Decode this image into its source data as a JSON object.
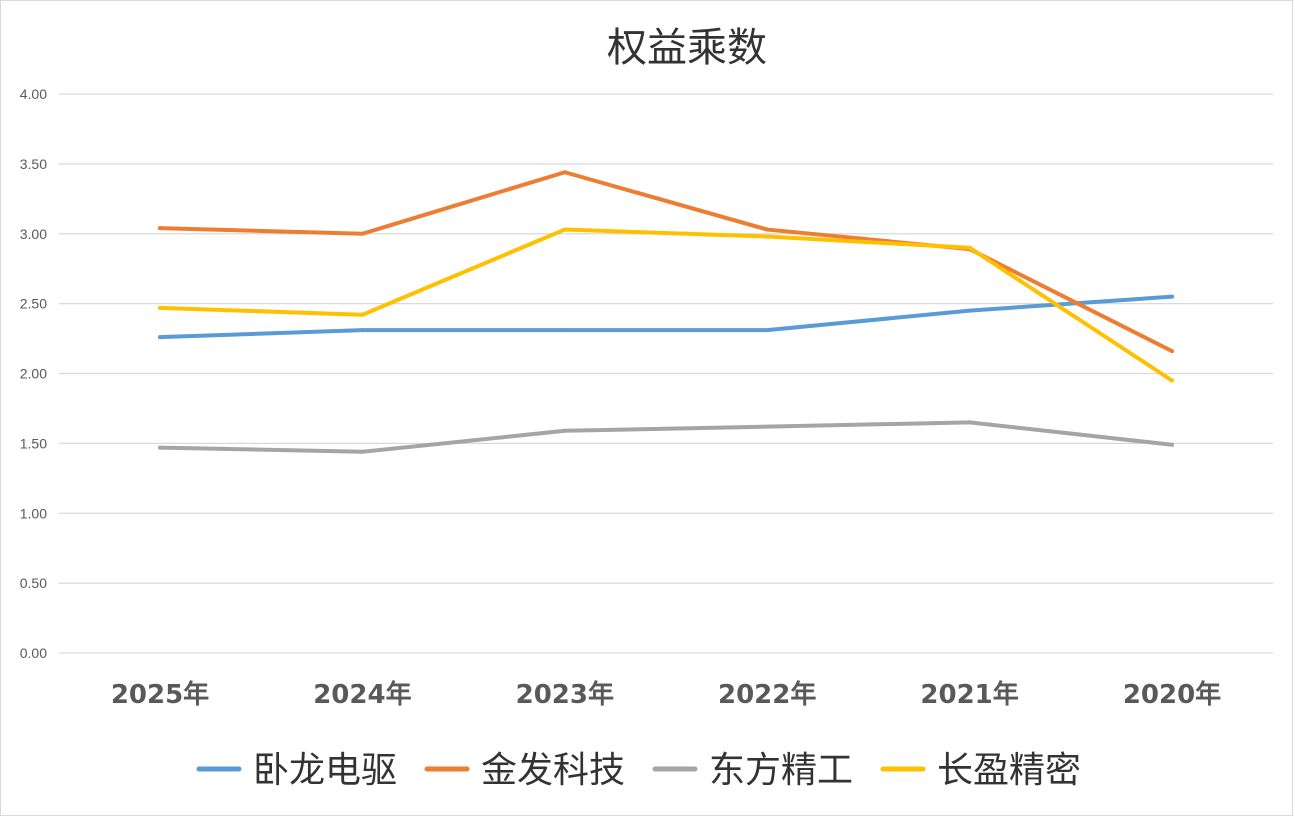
{
  "chart_data": {
    "type": "line",
    "title": "权益乘数",
    "xlabel": "",
    "ylabel": "",
    "categories": [
      "2025年",
      "2024年",
      "2023年",
      "2022年",
      "2021年",
      "2020年"
    ],
    "y_ticks": [
      "0.00",
      "0.50",
      "1.00",
      "1.50",
      "2.00",
      "2.50",
      "3.00",
      "3.50",
      "4.00"
    ],
    "ylim": [
      0,
      4
    ],
    "grid": true,
    "legend_position": "bottom",
    "series": [
      {
        "name": "卧龙电驱",
        "color": "#5B9BD5",
        "values": [
          2.26,
          2.31,
          2.31,
          2.31,
          2.45,
          2.55
        ]
      },
      {
        "name": "金发科技",
        "color": "#ED7D31",
        "values": [
          3.04,
          3.0,
          3.44,
          3.03,
          2.89,
          2.16
        ]
      },
      {
        "name": "东方精工",
        "color": "#A5A5A5",
        "values": [
          1.47,
          1.44,
          1.59,
          1.62,
          1.65,
          1.49
        ]
      },
      {
        "name": "长盈精密",
        "color": "#FFC000",
        "values": [
          2.47,
          2.42,
          3.03,
          2.98,
          2.9,
          1.95
        ]
      }
    ]
  }
}
